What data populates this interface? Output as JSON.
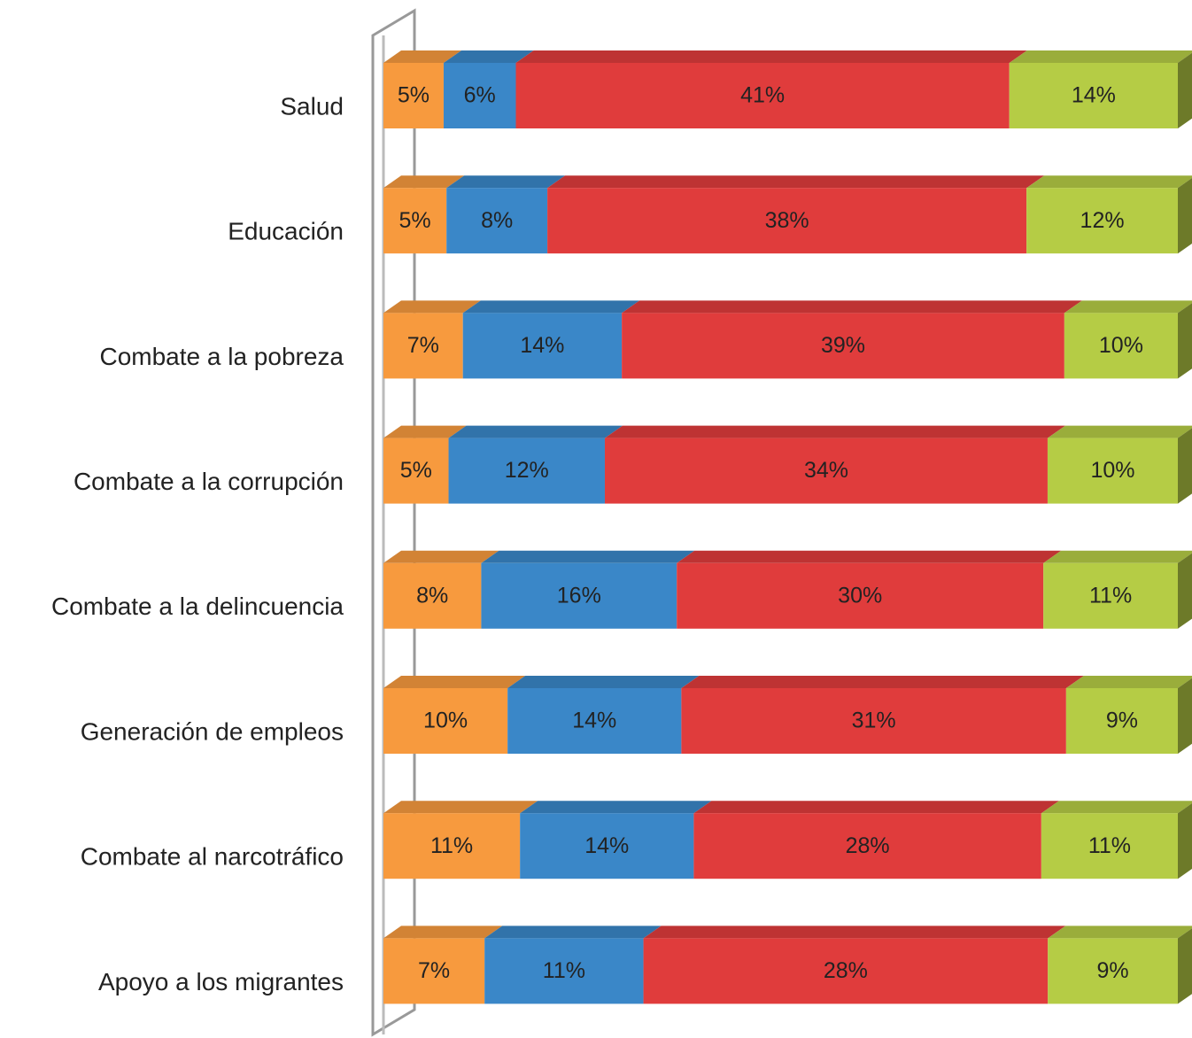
{
  "chart_data": {
    "type": "bar",
    "orientation": "horizontal",
    "stacked": "percent",
    "categories": [
      "Salud",
      "Educación",
      "Combate a la pobreza",
      "Combate a la corrupción",
      "Combate a la delincuencia",
      "Generación de empleos",
      "Combate al narcotráfico",
      "Apoyo a los migrantes"
    ],
    "series": [
      {
        "color": "#f79a3e",
        "values": [
          5,
          5,
          7,
          5,
          8,
          10,
          11,
          7
        ],
        "value_labels": [
          "5%",
          "5%",
          "7%",
          "5%",
          "8%",
          "10%",
          "11%",
          "7%"
        ]
      },
      {
        "color": "#3a87c8",
        "values": [
          6,
          8,
          14,
          12,
          16,
          14,
          14,
          11
        ],
        "value_labels": [
          "6%",
          "8%",
          "14%",
          "12%",
          "16%",
          "14%",
          "14%",
          "11%"
        ]
      },
      {
        "color": "#e03c3c",
        "values": [
          41,
          38,
          39,
          34,
          30,
          31,
          28,
          28
        ],
        "value_labels": [
          "41%",
          "38%",
          "39%",
          "34%",
          "30%",
          "31%",
          "28%",
          "28%"
        ]
      },
      {
        "color": "#b5cc45",
        "values": [
          14,
          12,
          10,
          10,
          11,
          9,
          11,
          9
        ],
        "value_labels": [
          "14%",
          "12%",
          "10%",
          "10%",
          "11%",
          "9%",
          "11%",
          "9%"
        ]
      }
    ]
  }
}
